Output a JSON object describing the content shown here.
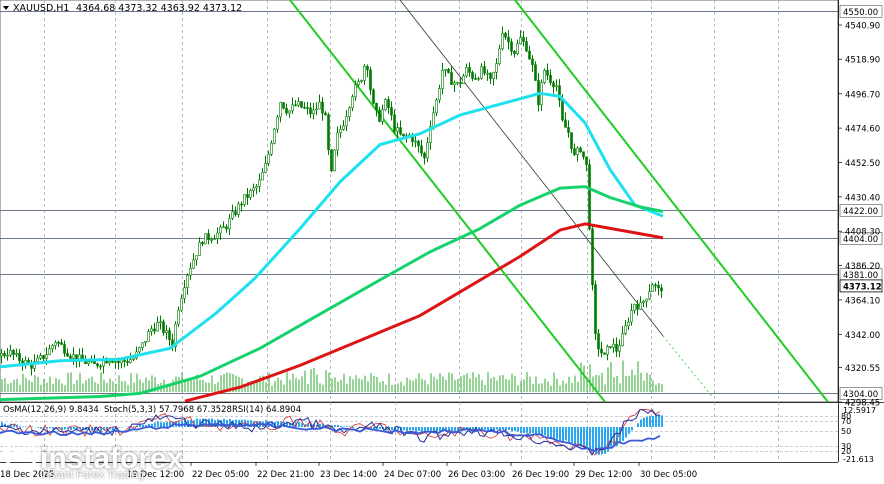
{
  "header": {
    "symbol_menu_icon": "triangle-down-icon",
    "symbol": "XAUUSD,H1",
    "ohlc": "4364.68 4373.32 4363.92 4373.12"
  },
  "osma_header": "OsMA(12,26,9) 9.8434",
  "stoch_header": "Stoch(5,3,3) 57.7968 67.3528",
  "rsi_header": "RSI(14) 64.8904",
  "watermark": {
    "brand": "instaforex",
    "tagline": "Instant Forex Trading"
  },
  "colors": {
    "background": "#ffffff",
    "grid": "#9aa0a6",
    "candle": "#007a00",
    "ema_fast": "#1ee0ee",
    "ema_mid": "#16d26a",
    "ema_slow": "#dc1414",
    "channel": "#22cc22",
    "level_line": "#6b7a8a",
    "volume": "#2eaa2e",
    "osma_hist": "#2aa8f0",
    "stoch_main": "#1f2fa0",
    "stoch_signal": "#d03030",
    "rsi": "#3a5ad8"
  },
  "chart_data": {
    "type": "candlestick",
    "y_range": [
      4298.45,
      4557
    ],
    "y_ticks": [
      "4540.90",
      "4518.90",
      "4496.70",
      "4474.60",
      "4452.50",
      "4430.40",
      "4408.30",
      "4386.20",
      "4364.10",
      "4342.00",
      "4320.55",
      "4298.45"
    ],
    "x_ticks": [
      "18 Dec 2025",
      "19 Dec 12:00",
      "22 Dec 05:00",
      "22 Dec 21:00",
      "23 Dec 14:00",
      "24 Dec 07:00",
      "26 Dec 03:00",
      "26 Dec 19:00",
      "29 Dec 12:00",
      "30 Dec 05:00"
    ],
    "levels": [
      {
        "value": 4550.0,
        "label": "4550.00"
      },
      {
        "value": 4422.0,
        "label": "4422.00"
      },
      {
        "value": 4404.0,
        "label": "4404.00"
      },
      {
        "value": 4381.0,
        "label": "4381.00"
      },
      {
        "value": 4304.0,
        "label": "4304.00"
      }
    ],
    "current_price": {
      "value": 4373.12,
      "label": "4373.12"
    },
    "close_path": [
      [
        0,
        4328
      ],
      [
        8,
        4331
      ],
      [
        16,
        4327
      ],
      [
        24,
        4324
      ],
      [
        32,
        4322
      ],
      [
        40,
        4326
      ],
      [
        48,
        4331
      ],
      [
        55,
        4338
      ],
      [
        62,
        4334
      ],
      [
        70,
        4329
      ],
      [
        78,
        4326
      ],
      [
        86,
        4324
      ],
      [
        94,
        4322
      ],
      [
        102,
        4325
      ],
      [
        110,
        4327
      ],
      [
        118,
        4324
      ],
      [
        126,
        4325
      ],
      [
        134,
        4327
      ],
      [
        142,
        4335
      ],
      [
        150,
        4345
      ],
      [
        158,
        4349
      ],
      [
        166,
        4342
      ],
      [
        172,
        4336
      ],
      [
        178,
        4360
      ],
      [
        186,
        4380
      ],
      [
        194,
        4392
      ],
      [
        202,
        4403
      ],
      [
        210,
        4405
      ],
      [
        218,
        4407
      ],
      [
        226,
        4412
      ],
      [
        234,
        4420
      ],
      [
        242,
        4428
      ],
      [
        250,
        4433
      ],
      [
        258,
        4438
      ],
      [
        266,
        4452
      ],
      [
        272,
        4470
      ],
      [
        280,
        4492
      ],
      [
        288,
        4485
      ],
      [
        296,
        4490
      ],
      [
        304,
        4487
      ],
      [
        312,
        4484
      ],
      [
        320,
        4491
      ],
      [
        326,
        4478
      ],
      [
        330,
        4440
      ],
      [
        336,
        4468
      ],
      [
        344,
        4480
      ],
      [
        352,
        4497
      ],
      [
        360,
        4505
      ],
      [
        366,
        4520
      ],
      [
        372,
        4490
      ],
      [
        378,
        4480
      ],
      [
        386,
        4492
      ],
      [
        394,
        4475
      ],
      [
        402,
        4468
      ],
      [
        410,
        4470
      ],
      [
        418,
        4462
      ],
      [
        424,
        4455
      ],
      [
        430,
        4478
      ],
      [
        436,
        4492
      ],
      [
        442,
        4512
      ],
      [
        450,
        4506
      ],
      [
        458,
        4502
      ],
      [
        466,
        4512
      ],
      [
        474,
        4507
      ],
      [
        482,
        4512
      ],
      [
        490,
        4504
      ],
      [
        496,
        4515
      ],
      [
        502,
        4538
      ],
      [
        508,
        4530
      ],
      [
        514,
        4524
      ],
      [
        520,
        4532
      ],
      [
        526,
        4527
      ],
      [
        532,
        4514
      ],
      [
        538,
        4492
      ],
      [
        544,
        4512
      ],
      [
        550,
        4506
      ],
      [
        556,
        4502
      ],
      [
        562,
        4478
      ],
      [
        568,
        4472
      ],
      [
        574,
        4456
      ],
      [
        580,
        4462
      ],
      [
        586,
        4450
      ],
      [
        590,
        4400
      ],
      [
        594,
        4342
      ],
      [
        598,
        4334
      ],
      [
        604,
        4327
      ],
      [
        610,
        4336
      ],
      [
        616,
        4332
      ],
      [
        622,
        4340
      ],
      [
        628,
        4352
      ],
      [
        634,
        4362
      ],
      [
        640,
        4360
      ],
      [
        646,
        4367
      ],
      [
        652,
        4375
      ],
      [
        658,
        4370
      ],
      [
        662,
        4373
      ]
    ],
    "series": [
      {
        "name": "EMA fast",
        "color_key": "ema_fast",
        "points": [
          [
            0,
            4321
          ],
          [
            60,
            4325
          ],
          [
            120,
            4326
          ],
          [
            170,
            4333
          ],
          [
            215,
            4355
          ],
          [
            255,
            4378
          ],
          [
            300,
            4410
          ],
          [
            340,
            4440
          ],
          [
            380,
            4464
          ],
          [
            420,
            4471
          ],
          [
            460,
            4483
          ],
          [
            500,
            4490
          ],
          [
            540,
            4497
          ],
          [
            560,
            4495
          ],
          [
            585,
            4478
          ],
          [
            610,
            4448
          ],
          [
            635,
            4425
          ],
          [
            663,
            4418
          ]
        ]
      },
      {
        "name": "EMA mid",
        "color_key": "ema_mid",
        "points": [
          [
            0,
            4300
          ],
          [
            100,
            4302
          ],
          [
            140,
            4304
          ],
          [
            200,
            4315
          ],
          [
            260,
            4333
          ],
          [
            320,
            4355
          ],
          [
            380,
            4377
          ],
          [
            430,
            4395
          ],
          [
            480,
            4410
          ],
          [
            520,
            4425
          ],
          [
            560,
            4436
          ],
          [
            585,
            4437
          ],
          [
            610,
            4430
          ],
          [
            640,
            4424
          ],
          [
            663,
            4421
          ]
        ]
      },
      {
        "name": "EMA slow",
        "color_key": "ema_slow",
        "points": [
          [
            185,
            4299
          ],
          [
            240,
            4308
          ],
          [
            300,
            4322
          ],
          [
            360,
            4338
          ],
          [
            420,
            4354
          ],
          [
            470,
            4373
          ],
          [
            520,
            4392
          ],
          [
            560,
            4409
          ],
          [
            585,
            4413
          ],
          [
            620,
            4409
          ],
          [
            663,
            4404
          ]
        ]
      }
    ],
    "channels": [
      {
        "from": [
          290,
          4557
        ],
        "to": [
          605,
          4298.45
        ]
      },
      {
        "from": [
          515,
          4557
        ],
        "to": [
          828,
          4298.45
        ]
      },
      {
        "from": [
          400,
          4557
        ],
        "to": [
          663,
          4341
        ],
        "style": "thin"
      },
      {
        "from": [
          663,
          4341
        ],
        "to": [
          712,
          4302
        ],
        "style": "dashed"
      }
    ],
    "volume_bars_visible": true,
    "osma": {
      "label": "OsMA(12,26,9)",
      "value": 9.8434,
      "scale_ticks": [
        "12.5917",
        "0.00",
        "-21.613"
      ]
    },
    "stochastic": {
      "label": "Stoch(5,3,3)",
      "main": 57.7968,
      "signal": 67.3528,
      "levels": [
        "80",
        "70",
        "50",
        "30",
        "20"
      ]
    },
    "rsi": {
      "label": "RSI(14)",
      "value": 64.8904
    }
  }
}
